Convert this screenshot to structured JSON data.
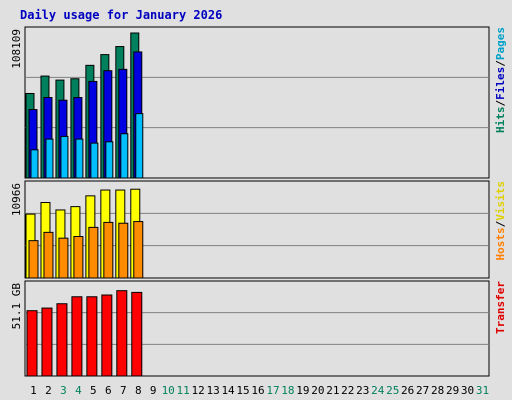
{
  "chart_data": {
    "type": "bar",
    "title": "Daily usage for January 2026",
    "categories": [
      "1",
      "2",
      "3",
      "4",
      "5",
      "6",
      "7",
      "8",
      "9",
      "10",
      "11",
      "12",
      "13",
      "14",
      "15",
      "16",
      "17",
      "18",
      "19",
      "20",
      "21",
      "22",
      "23",
      "24",
      "25",
      "26",
      "27",
      "28",
      "29",
      "30",
      "31"
    ],
    "weekend_days": [
      "3",
      "4",
      "10",
      "11",
      "17",
      "18",
      "24",
      "25",
      "31"
    ],
    "panels": [
      {
        "id": "hits-files-pages",
        "ymax_label": "108109",
        "ymax": 108109,
        "grid": true,
        "right_label": [
          {
            "text": "Hits",
            "color": "#00805c"
          },
          {
            "text": "/",
            "color": "#000000"
          },
          {
            "text": "Files",
            "color": "#0000c0"
          },
          {
            "text": "/",
            "color": "#000000"
          },
          {
            "text": "Pages",
            "color": "#00a0c8"
          }
        ],
        "series": [
          {
            "name": "Hits",
            "color": "#00805c",
            "values": [
              63000,
              76000,
              73000,
              74000,
              84000,
              92000,
              98000,
              108109
            ]
          },
          {
            "name": "Files",
            "color": "#0000e0",
            "values": [
              51000,
              60000,
              58000,
              60000,
              72000,
              80000,
              81000,
              94000
            ]
          },
          {
            "name": "Pages",
            "color": "#00bfff",
            "values": [
              21000,
              29000,
              31000,
              29000,
              26000,
              27000,
              33000,
              48000
            ]
          }
        ]
      },
      {
        "id": "visits-hosts",
        "ymax_label": "10966",
        "ymax": 10966,
        "grid": true,
        "right_label": [
          {
            "text": "Hosts",
            "color": "#ff8000"
          },
          {
            "text": "/",
            "color": "#000000"
          },
          {
            "text": "Visits",
            "color": "#e0d000"
          }
        ],
        "series": [
          {
            "name": "Visits",
            "color": "#ffff00",
            "values": [
              7700,
              9100,
              8200,
              8600,
              9900,
              10600,
              10600,
              10700
            ]
          },
          {
            "name": "Hosts",
            "color": "#ff8c00",
            "values": [
              4500,
              5500,
              4800,
              5000,
              6100,
              6700,
              6600,
              6800
            ]
          }
        ]
      },
      {
        "id": "transfer",
        "ymax_label": "51.1 GB",
        "ymax": 51.1,
        "grid": true,
        "right_label": [
          {
            "text": "Transfer",
            "color": "#e00000"
          }
        ],
        "series": [
          {
            "name": "Transfer",
            "color": "#ff0000",
            "values": [
              37.5,
              39.0,
              41.5,
              45.5,
              45.5,
              46.5,
              49.0,
              48.0
            ]
          }
        ]
      }
    ]
  }
}
